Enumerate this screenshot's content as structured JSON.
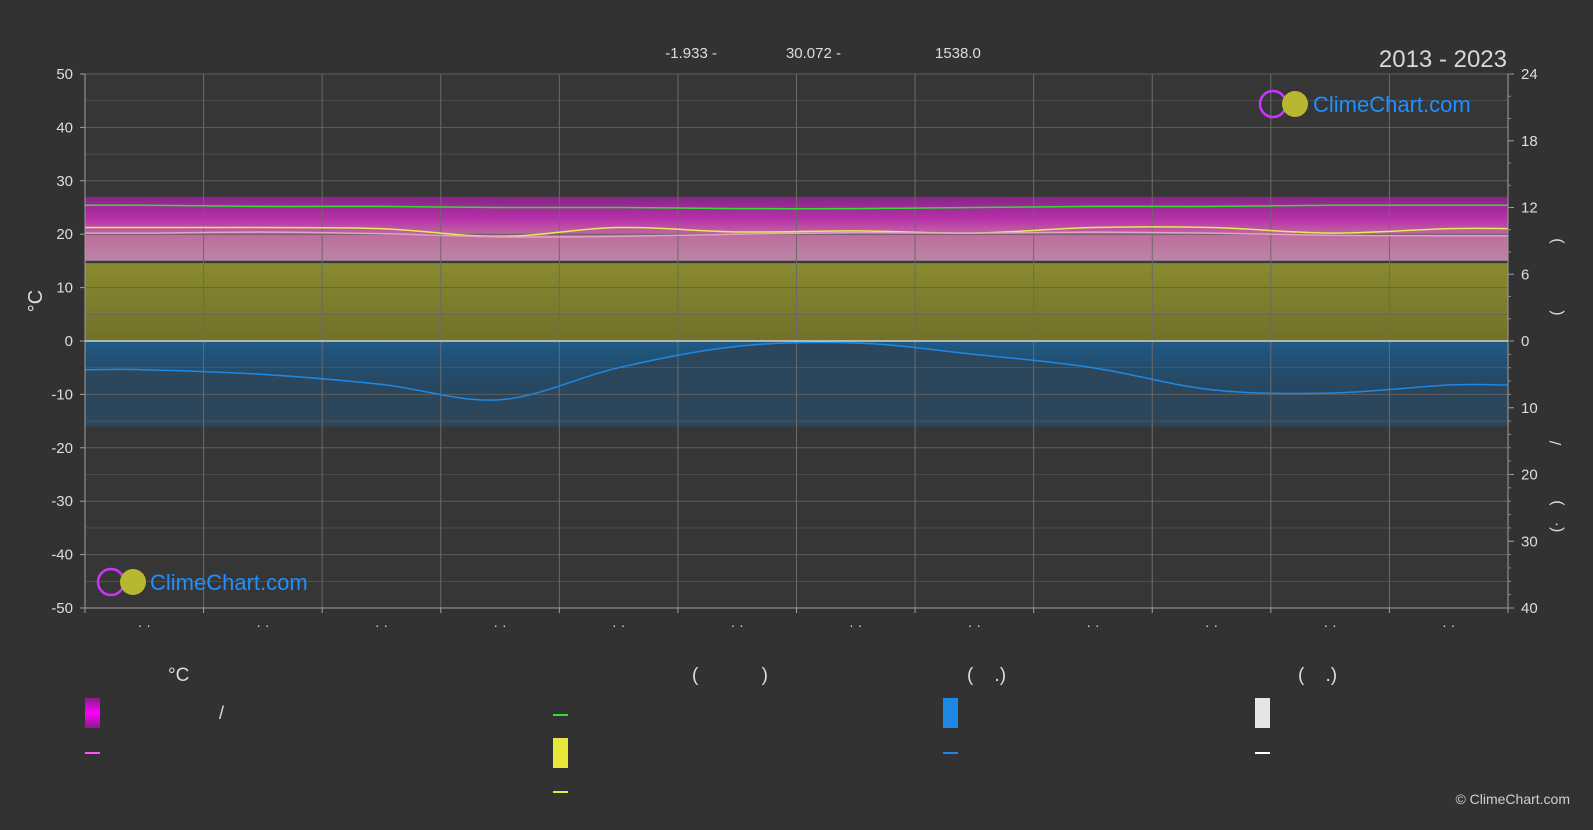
{
  "header": {
    "period": "2013 - 2023",
    "stat_min_temp": "-1.933 -",
    "stat_max_temp": "30.072 -",
    "stat_precip": "1538.0"
  },
  "branding": {
    "logo_text": "ClimeChart.com",
    "copyright": "© ClimeChart.com"
  },
  "colors": {
    "background": "#323232",
    "plot_bg": "#3a3a3a",
    "grid": "#5c5c5c",
    "magenta": "#e020e0",
    "pink": "#e6a0c8",
    "olive": "#8c8c30",
    "yellow": "#e8e85a",
    "green": "#33dd33",
    "blue": "#1e88e5",
    "white": "#ffffff",
    "logo_blue": "#1e90ff"
  },
  "legend": {
    "col1_head": "°C",
    "col1_sep": "/",
    "col2_head": "(            )",
    "col3_head": "(    .)",
    "col4_head": "(    .)"
  },
  "chart_data": {
    "type": "area",
    "title": "2013 - 2023",
    "ylabel_left": "°C",
    "ylim_left": [
      -50,
      50
    ],
    "left_ticks": [
      "50",
      "40",
      "30",
      "20",
      "10",
      "0",
      "-10",
      "-20",
      "-30",
      "-40",
      "-50"
    ],
    "right_ticks_upper": [
      "24",
      "18",
      "12",
      "6",
      "0"
    ],
    "right_ticks_lower": [
      "10",
      "20",
      "30",
      "40"
    ],
    "right_axis_upper_range": [
      0,
      24
    ],
    "right_axis_lower_range": [
      0,
      40
    ],
    "right_labels": [
      ")",
      "(",
      "/",
      ")",
      "(·"
    ],
    "x_tick_labels": [
      "· ·",
      "· ·",
      "· ·",
      "· ·",
      "· ·",
      "· ·",
      "· ·",
      "· ·",
      "· ·",
      "· ·",
      "· ·",
      "· ·"
    ],
    "months": 12,
    "grid": true,
    "series": [
      {
        "key": "daylight",
        "color": "#33dd33",
        "unit": "hours",
        "values": [
          12.2,
          12.1,
          12.1,
          12.0,
          12.0,
          11.9,
          11.9,
          12.0,
          12.1,
          12.1,
          12.2,
          12.2
        ]
      },
      {
        "key": "sunshine",
        "color": "#e8e85a",
        "unit": "hours",
        "values": [
          10.2,
          10.2,
          10.1,
          9.4,
          10.2,
          9.8,
          9.9,
          9.7,
          10.2,
          10.2,
          9.7,
          10.1
        ]
      },
      {
        "key": "mean_temperature",
        "color": "#e6a0c8",
        "unit": "°C",
        "values": [
          20.2,
          20.4,
          20.1,
          19.5,
          19.6,
          20.0,
          20.3,
          20.2,
          20.4,
          20.2,
          19.8,
          19.7
        ]
      },
      {
        "key": "precipitation",
        "color": "#1e88e5",
        "unit": "mm",
        "values": [
          4.3,
          5.0,
          6.5,
          8.8,
          4.0,
          0.8,
          0.3,
          2.0,
          4.0,
          7.3,
          7.8,
          6.6
        ]
      }
    ],
    "bands": {
      "max_temp_top": 27,
      "max_temp_bottom": 22,
      "min_temp_top": 22,
      "min_temp_bottom": 15,
      "sunshine_fill_top_hours": 7.0
    }
  }
}
